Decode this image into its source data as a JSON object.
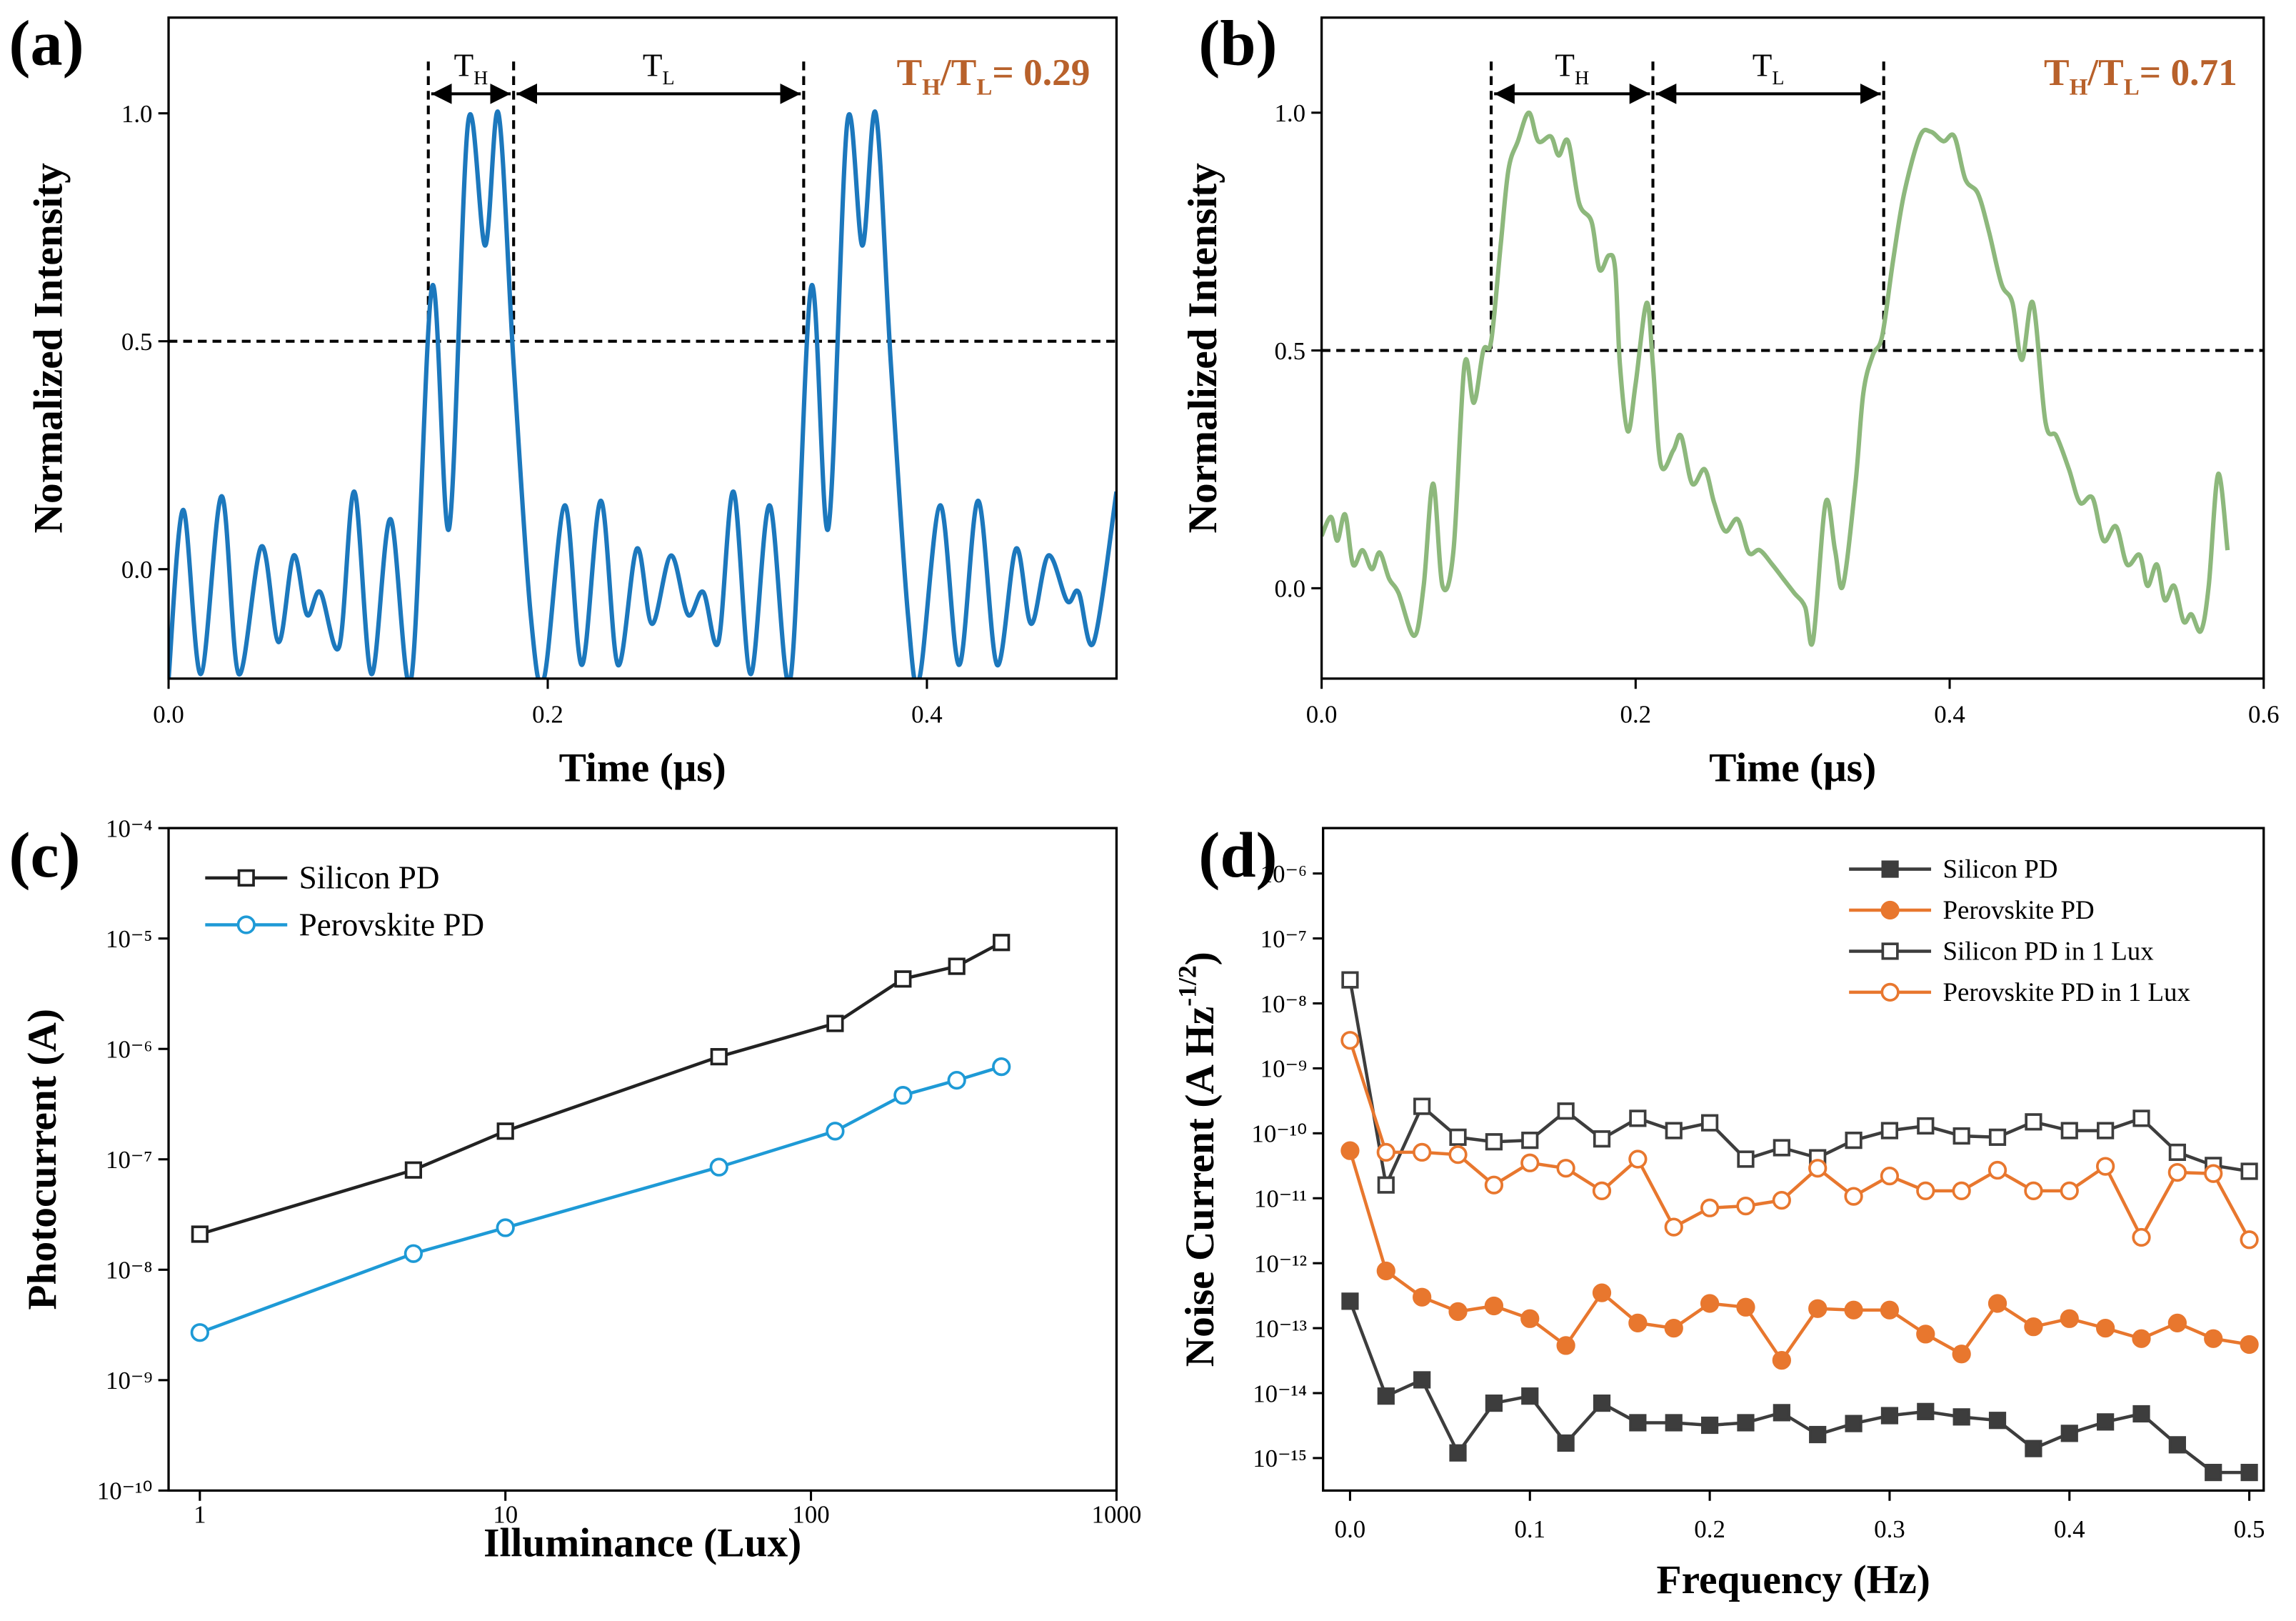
{
  "chart_data": [
    {
      "type": "line",
      "panel_label": "(a)",
      "xlabel": "Time (μs)",
      "ylabel": [
        {
          "t": "Normalized Intensity"
        }
      ],
      "xlim": [
        0,
        0.5
      ],
      "ylim": [
        -0.24,
        1.21
      ],
      "xticks": [
        {
          "value": 0,
          "label": "0.0"
        },
        0.2,
        0.4
      ],
      "yticks": [
        {
          "value": 0,
          "label": "0.0"
        },
        0.5,
        {
          "value": 1,
          "label": "1.0"
        }
      ],
      "x": [
        0,
        0.0077,
        0.017,
        0.028,
        0.037,
        0.049,
        0.058,
        0.066,
        0.073,
        0.08,
        0.09,
        0.098,
        0.107,
        0.117,
        0.128,
        0.139,
        0.148,
        0.158,
        0.167,
        0.174,
        0.182,
        0.191,
        0.198,
        0.209,
        0.218,
        0.228,
        0.237,
        0.247,
        0.255,
        0.265,
        0.274,
        0.282,
        0.29,
        0.298,
        0.307,
        0.317,
        0.328,
        0.339,
        0.348,
        0.358,
        0.366,
        0.373,
        0.381,
        0.39,
        0.396,
        0.407,
        0.417,
        0.427,
        0.437,
        0.447,
        0.455,
        0.464,
        0.474,
        0.48,
        0.488,
        0.5
      ],
      "series": [
        {
          "color": "#1c78bd",
          "values": [
            -0.24,
            0.13,
            -0.23,
            0.16,
            -0.23,
            0.05,
            -0.16,
            0.03,
            -0.1,
            -0.05,
            -0.17,
            0.17,
            -0.23,
            0.11,
            -0.24,
            0.62,
            0.09,
            0.98,
            0.71,
            1.0,
            0.45,
            -0.1,
            -0.24,
            0.14,
            -0.21,
            0.15,
            -0.21,
            0.045,
            -0.12,
            0.03,
            -0.1,
            -0.05,
            -0.16,
            0.17,
            -0.23,
            0.14,
            -0.24,
            0.62,
            0.09,
            0.98,
            0.71,
            1.0,
            0.45,
            -0.1,
            -0.24,
            0.14,
            -0.21,
            0.15,
            -0.21,
            0.045,
            -0.12,
            0.03,
            -0.07,
            -0.05,
            -0.16,
            0.17
          ]
        }
      ],
      "threshold": 0.5,
      "markers": [
        0.137,
        0.182,
        0.335
      ],
      "annotations": [
        [
          {
            "t": "T"
          },
          {
            "sub": "H"
          }
        ],
        [
          {
            "t": "T"
          },
          {
            "sub": "L"
          }
        ]
      ],
      "ratio": [
        {
          "t": "T"
        },
        {
          "sub": "H"
        },
        {
          "t": "/T"
        },
        {
          "sub": "L"
        },
        {
          "t": "= 0.29"
        }
      ],
      "ratio_color": "#b8612b"
    },
    {
      "type": "line",
      "panel_label": "(b)",
      "xlabel": "Time (μs)",
      "ylabel": [
        {
          "t": "Normalized Intensity"
        }
      ],
      "xlim": [
        0,
        0.6
      ],
      "ylim": [
        -0.19,
        1.2
      ],
      "xticks": [
        {
          "value": 0,
          "label": "0.0"
        },
        0.2,
        0.4,
        0.6
      ],
      "yticks": [
        {
          "value": 0,
          "label": "0.0"
        },
        0.5,
        {
          "value": 1,
          "label": "1.0"
        }
      ],
      "x": [
        0,
        0.006,
        0.01,
        0.015,
        0.02,
        0.026,
        0.032,
        0.037,
        0.043,
        0.049,
        0.059,
        0.065,
        0.071,
        0.077,
        0.084,
        0.091,
        0.097,
        0.103,
        0.108,
        0.114,
        0.119,
        0.125,
        0.132,
        0.138,
        0.146,
        0.151,
        0.157,
        0.164,
        0.172,
        0.177,
        0.183,
        0.187,
        0.19,
        0.195,
        0.2,
        0.207,
        0.211,
        0.216,
        0.224,
        0.229,
        0.236,
        0.244,
        0.25,
        0.257,
        0.265,
        0.272,
        0.279,
        0.287,
        0.294,
        0.301,
        0.308,
        0.313,
        0.321,
        0.327,
        0.332,
        0.34,
        0.345,
        0.351,
        0.357,
        0.364,
        0.371,
        0.381,
        0.388,
        0.396,
        0.403,
        0.41,
        0.418,
        0.425,
        0.433,
        0.44,
        0.446,
        0.453,
        0.461,
        0.468,
        0.476,
        0.483,
        0.491,
        0.498,
        0.506,
        0.513,
        0.521,
        0.526,
        0.532,
        0.537,
        0.543,
        0.549,
        0.554,
        0.56,
        0.565,
        0.571,
        0.577
      ],
      "series": [
        {
          "color": "#8db87c",
          "values": [
            0.11,
            0.15,
            0.1,
            0.155,
            0.05,
            0.08,
            0.04,
            0.075,
            0.02,
            -0.01,
            -0.1,
            0.005,
            0.22,
            0.005,
            0.08,
            0.47,
            0.39,
            0.5,
            0.52,
            0.72,
            0.88,
            0.94,
            1.0,
            0.94,
            0.95,
            0.91,
            0.94,
            0.81,
            0.77,
            0.67,
            0.7,
            0.67,
            0.47,
            0.33,
            0.43,
            0.6,
            0.47,
            0.26,
            0.29,
            0.32,
            0.22,
            0.25,
            0.18,
            0.12,
            0.145,
            0.075,
            0.08,
            0.05,
            0.02,
            -0.01,
            -0.04,
            -0.11,
            0.18,
            0.08,
            0.005,
            0.22,
            0.41,
            0.49,
            0.53,
            0.69,
            0.83,
            0.95,
            0.96,
            0.94,
            0.95,
            0.86,
            0.83,
            0.75,
            0.64,
            0.6,
            0.48,
            0.6,
            0.35,
            0.32,
            0.25,
            0.18,
            0.19,
            0.1,
            0.13,
            0.05,
            0.07,
            0.005,
            0.05,
            -0.025,
            0.005,
            -0.07,
            -0.055,
            -0.09,
            0.005,
            0.24,
            0.08
          ]
        }
      ],
      "threshold": 0.5,
      "markers": [
        0.108,
        0.211,
        0.358
      ],
      "annotations": [
        [
          {
            "t": "T"
          },
          {
            "sub": "H"
          }
        ],
        [
          {
            "t": "T"
          },
          {
            "sub": "L"
          }
        ]
      ],
      "ratio": [
        {
          "t": "T"
        },
        {
          "sub": "H"
        },
        {
          "t": "/T"
        },
        {
          "sub": "L"
        },
        {
          "t": "= 0.71"
        }
      ],
      "ratio_color": "#b8612b"
    },
    {
      "type": "line",
      "panel_label": "(c)",
      "xlabel": "Illuminance (Lux)",
      "ylabel": [
        {
          "t": "Photocurrent (A)"
        }
      ],
      "xscale": "log",
      "yscale": "log",
      "xlim": [
        0.79,
        1000
      ],
      "ylim": [
        1e-10,
        0.0001
      ],
      "xticks": [
        1,
        10,
        100,
        1000
      ],
      "yticks": [
        {
          "value": 1e-10,
          "label": "10⁻¹⁰"
        },
        {
          "value": 1e-09,
          "label": "10⁻⁹"
        },
        {
          "value": 1e-08,
          "label": "10⁻⁸"
        },
        {
          "value": 1e-07,
          "label": "10⁻⁷"
        },
        {
          "value": 1e-06,
          "label": "10⁻⁶"
        },
        {
          "value": 1e-05,
          "label": "10⁻⁵"
        },
        {
          "value": 0.0001,
          "label": "10⁻⁴"
        }
      ],
      "x": [
        1,
        5,
        10,
        50,
        120,
        200,
        300,
        420
      ],
      "legend": "upper left",
      "series": [
        {
          "name": "Silicon PD",
          "color": "#222222",
          "marker": "square",
          "filled": false,
          "values": [
            2.1e-08,
            8e-08,
            1.8e-07,
            8.5e-07,
            1.7e-06,
            4.3e-06,
            5.6e-06,
            9.2e-06
          ]
        },
        {
          "name": "Perovskite PD",
          "color": "#1e9ad6",
          "marker": "circle",
          "filled": false,
          "values": [
            2.7e-09,
            1.4e-08,
            2.4e-08,
            8.5e-08,
            1.8e-07,
            3.8e-07,
            5.2e-07,
            6.9e-07
          ]
        }
      ]
    },
    {
      "type": "line",
      "panel_label": "(d)",
      "xlabel": "Frequency (Hz)",
      "ylabel": [
        {
          "t": "Noise Current (A Hz"
        },
        {
          "sup": "-1/2"
        },
        {
          "t": ")"
        }
      ],
      "yscale": "log",
      "xlim": [
        -0.015,
        0.508
      ],
      "ylim": [
        3.16e-16,
        5e-06
      ],
      "xticks": [
        {
          "value": 0,
          "label": "0.0"
        },
        0.1,
        0.2,
        0.3,
        0.4,
        0.5
      ],
      "yticks": [
        {
          "value": 1e-15,
          "label": "10⁻¹⁵"
        },
        {
          "value": 1e-14,
          "label": "10⁻¹⁴"
        },
        {
          "value": 1e-13,
          "label": "10⁻¹³"
        },
        {
          "value": 1e-12,
          "label": "10⁻¹²"
        },
        {
          "value": 1e-11,
          "label": "10⁻¹¹"
        },
        {
          "value": 1e-10,
          "label": "10⁻¹⁰"
        },
        {
          "value": 1e-09,
          "label": "10⁻⁹"
        },
        {
          "value": 1e-08,
          "label": "10⁻⁸"
        },
        {
          "value": 1e-07,
          "label": "10⁻⁷"
        },
        {
          "value": 1e-06,
          "label": "10⁻⁶"
        }
      ],
      "x": [
        0,
        0.02,
        0.04,
        0.06,
        0.08,
        0.1,
        0.12,
        0.14,
        0.16,
        0.18,
        0.2,
        0.22,
        0.24,
        0.26,
        0.28,
        0.3,
        0.32,
        0.34,
        0.36,
        0.38,
        0.4,
        0.42,
        0.44,
        0.46,
        0.48,
        0.5
      ],
      "legend": "upper right",
      "series": [
        {
          "name": "Silicon PD",
          "color": "#3d3d3d",
          "marker": "square",
          "filled": true,
          "values": [
            2.6e-13,
            9e-15,
            1.6e-14,
            1.2e-15,
            7e-15,
            9e-15,
            1.7e-15,
            7e-15,
            3.5e-15,
            3.5e-15,
            3.2e-15,
            3.5e-15,
            5e-15,
            2.3e-15,
            3.4e-15,
            4.5e-15,
            5.2e-15,
            4.3e-15,
            3.8e-15,
            1.4e-15,
            2.4e-15,
            3.6e-15,
            4.8e-15,
            1.6e-15,
            6e-16,
            6e-16
          ]
        },
        {
          "name": "Perovskite PD",
          "color": "#e8772e",
          "marker": "circle",
          "filled": true,
          "values": [
            5.4e-11,
            7.6e-13,
            3e-13,
            1.8e-13,
            2.2e-13,
            1.4e-13,
            5.4e-14,
            3.5e-13,
            1.2e-13,
            1e-13,
            2.4e-13,
            2.1e-13,
            3.2e-14,
            2e-13,
            1.9e-13,
            1.9e-13,
            8.1e-14,
            4e-14,
            2.4e-13,
            1.05e-13,
            1.4e-13,
            1e-13,
            6.9e-14,
            1.2e-13,
            6.9e-14,
            5.6e-14
          ]
        },
        {
          "name": "Silicon PD in 1 Lux",
          "color": "#3d3d3d",
          "marker": "square",
          "filled": false,
          "values": [
            2.3e-08,
            1.6e-11,
            2.6e-10,
            8.7e-11,
            7.4e-11,
            7.8e-11,
            2.2e-10,
            8.2e-11,
            1.7e-10,
            1.1e-10,
            1.45e-10,
            4e-11,
            6e-11,
            4.2e-11,
            7.8e-11,
            1.1e-10,
            1.3e-10,
            9.1e-11,
            8.7e-11,
            1.5e-10,
            1.1e-10,
            1.1e-10,
            1.7e-10,
            5.1e-11,
            3.2e-11,
            2.6e-11
          ]
        },
        {
          "name": "Perovskite PD in 1 Lux",
          "color": "#e8772e",
          "marker": "circle",
          "filled": false,
          "values": [
            2.7e-09,
            5.1e-11,
            5.1e-11,
            4.7e-11,
            1.6e-11,
            3.5e-11,
            2.9e-11,
            1.3e-11,
            4e-11,
            3.6e-12,
            7.1e-12,
            7.6e-12,
            9.3e-12,
            2.9e-11,
            1.07e-11,
            2.2e-11,
            1.3e-11,
            1.3e-11,
            2.7e-11,
            1.3e-11,
            1.3e-11,
            3.1e-11,
            2.5e-12,
            2.5e-11,
            2.4e-11,
            2.3e-12
          ]
        }
      ]
    }
  ]
}
